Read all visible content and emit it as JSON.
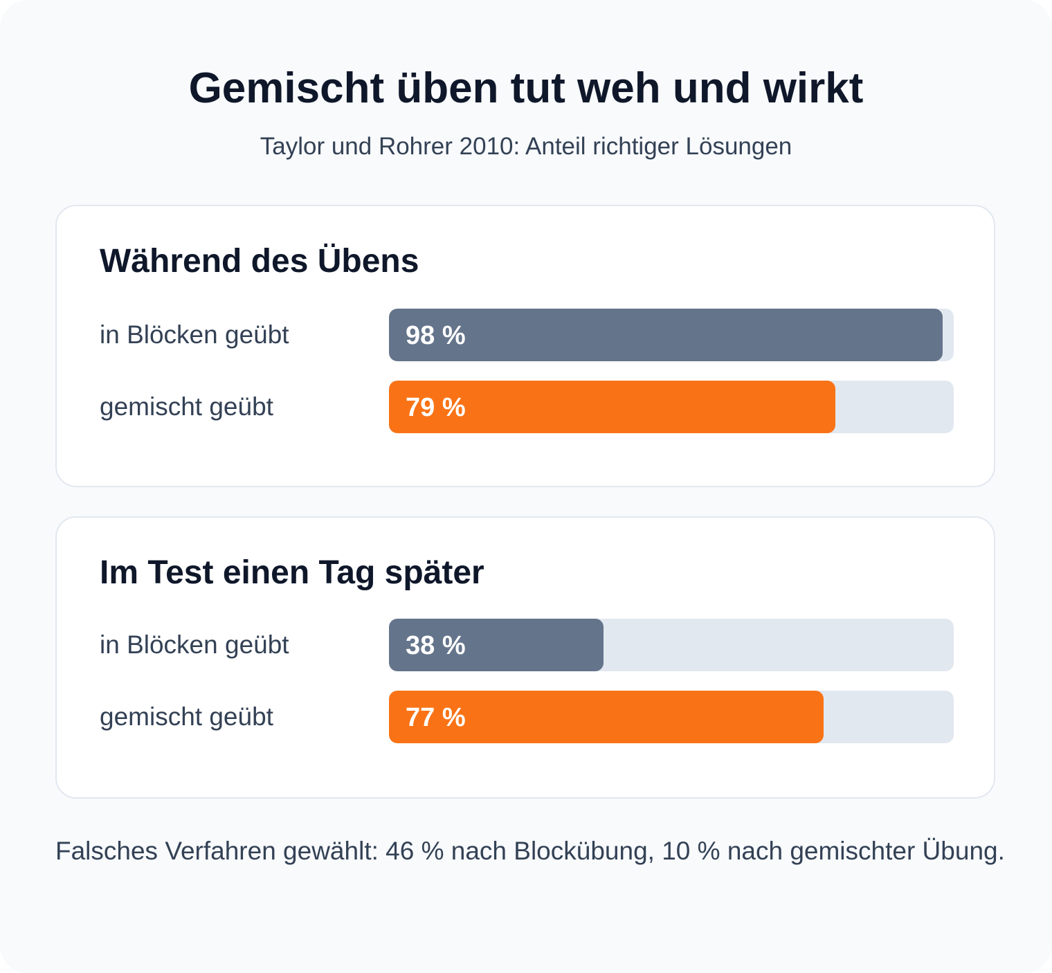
{
  "header": {
    "title": "Gemischt üben tut weh und wirkt",
    "subtitle": "Taylor und Rohrer 2010: Anteil richtiger Lösungen"
  },
  "colors": {
    "blocked": "#64748b",
    "mixed": "#f97316",
    "track": "#e2e8f0"
  },
  "chart_data": [
    {
      "type": "bar",
      "orientation": "horizontal",
      "title": "Während des Übens",
      "categories": [
        "in Blöcken geübt",
        "gemischt geübt"
      ],
      "values": [
        98,
        79
      ],
      "value_labels": [
        "98 %",
        "79 %"
      ],
      "unit": "%",
      "xlim": [
        0,
        100
      ],
      "grid": false
    },
    {
      "type": "bar",
      "orientation": "horizontal",
      "title": "Im Test einen Tag später",
      "categories": [
        "in Blöcken geübt",
        "gemischt geübt"
      ],
      "values": [
        38,
        77
      ],
      "value_labels": [
        "38 %",
        "77 %"
      ],
      "unit": "%",
      "xlim": [
        0,
        100
      ],
      "grid": false
    }
  ],
  "footnote": "Falsches Verfahren gewählt: 46 % nach Blockübung, 10 % nach gemischter Übung."
}
